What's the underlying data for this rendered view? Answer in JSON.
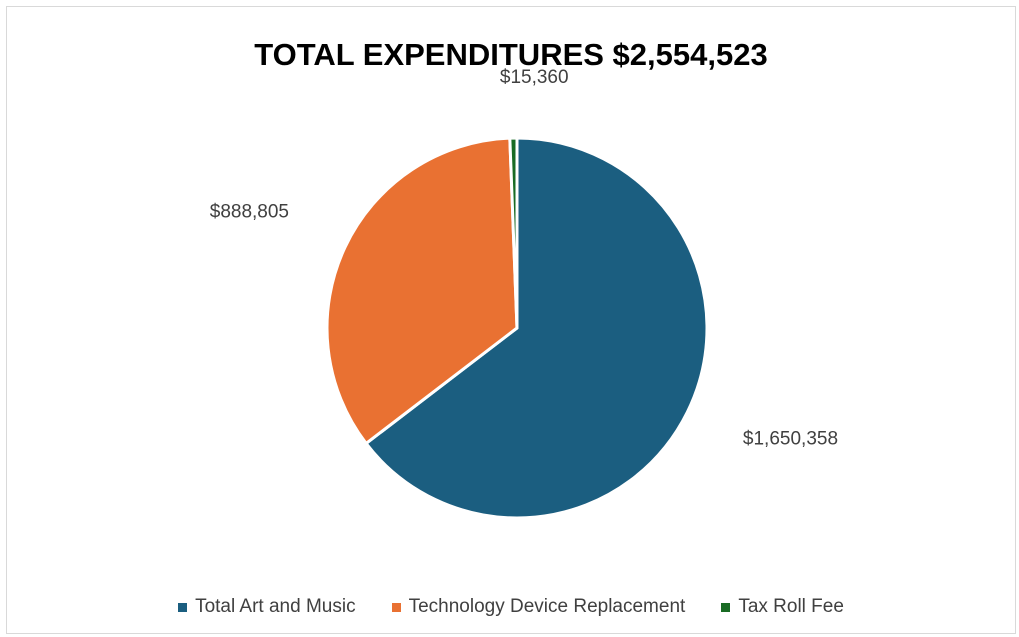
{
  "chart_data": {
    "type": "pie",
    "title": "TOTAL EXPENDITURES $2,554,523",
    "categories": [
      "Total Art and Music",
      "Technology Device Replacement",
      "Tax Roll Fee"
    ],
    "values": [
      1650358,
      888805,
      15360
    ],
    "data_labels": [
      "$1,650,358",
      "$888,805",
      "$15,360"
    ],
    "colors": [
      "#1b5e80",
      "#e97132",
      "#196b24"
    ],
    "legend_position": "bottom",
    "start_angle_deg": 0,
    "direction": "clockwise"
  }
}
